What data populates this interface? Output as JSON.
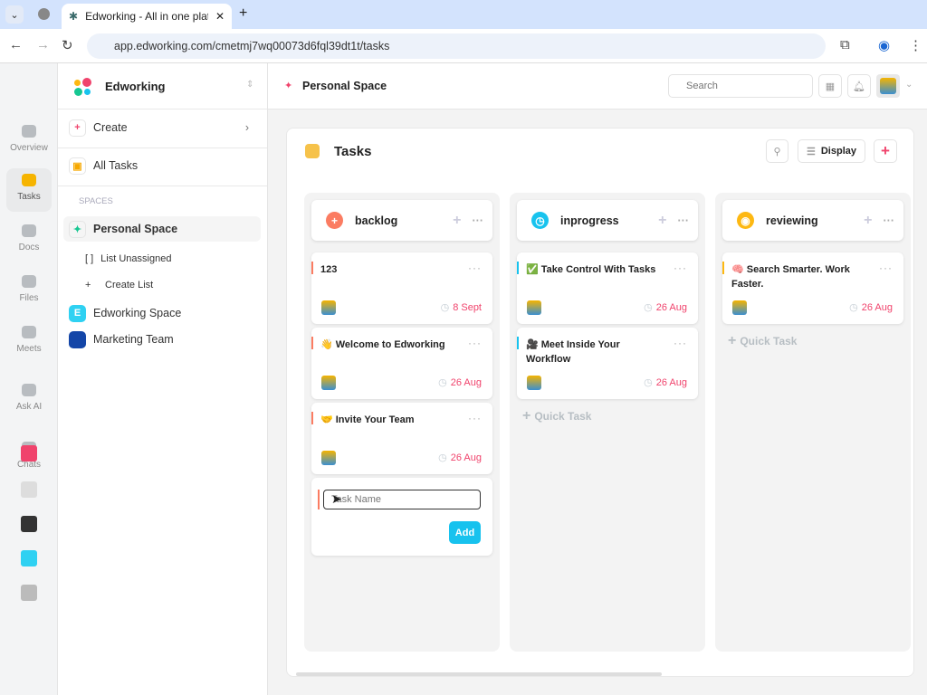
{
  "browser": {
    "tab_title": "Edworking - All in one platfo",
    "url": "app.edworking.com/cmetmj7wq00073d6fql39dt1t/tasks"
  },
  "workspace": {
    "name": "Edworking"
  },
  "rail": [
    {
      "label": "Overview"
    },
    {
      "label": "Tasks",
      "active": true
    },
    {
      "label": "Docs"
    },
    {
      "label": "Files"
    },
    {
      "label": "Meets"
    },
    {
      "label": "Ask AI"
    },
    {
      "label": "Chats"
    }
  ],
  "sidebar": {
    "create": "Create",
    "all_tasks": "All Tasks",
    "spaces_heading": "SPACES",
    "personal_space": "Personal Space",
    "list_unassigned": "List Unassigned",
    "create_list": "Create List",
    "edworking_space": "Edworking Space",
    "marketing_team": "Marketing Team"
  },
  "header": {
    "title": "Personal Space",
    "search_placeholder": "Search"
  },
  "board": {
    "title": "Tasks",
    "display_label": "Display",
    "quick_task": "Quick Task",
    "task_name_placeholder": "Task Name",
    "add_label": "Add",
    "columns": [
      {
        "name": "backlog",
        "color": "#fb7c62",
        "icon": "plus-circle-icon",
        "tasks": [
          {
            "title": "123",
            "date": "8 Sept"
          },
          {
            "title": "👋 Welcome to Edworking",
            "date": "26 Aug"
          },
          {
            "title": "🤝 Invite Your Team",
            "date": "26 Aug"
          }
        ]
      },
      {
        "name": "inprogress",
        "color": "#18c3ee",
        "icon": "clock-icon",
        "tasks": [
          {
            "title": "✅ Take Control With Tasks",
            "date": "26 Aug"
          },
          {
            "title": "🎥 Meet Inside Your Workflow",
            "date": "26 Aug"
          }
        ]
      },
      {
        "name": "reviewing",
        "color": "#fdb812",
        "icon": "eye-icon",
        "tasks": [
          {
            "title": "🧠 Search Smarter. Work Faster.",
            "date": "26 Aug"
          }
        ]
      }
    ]
  }
}
